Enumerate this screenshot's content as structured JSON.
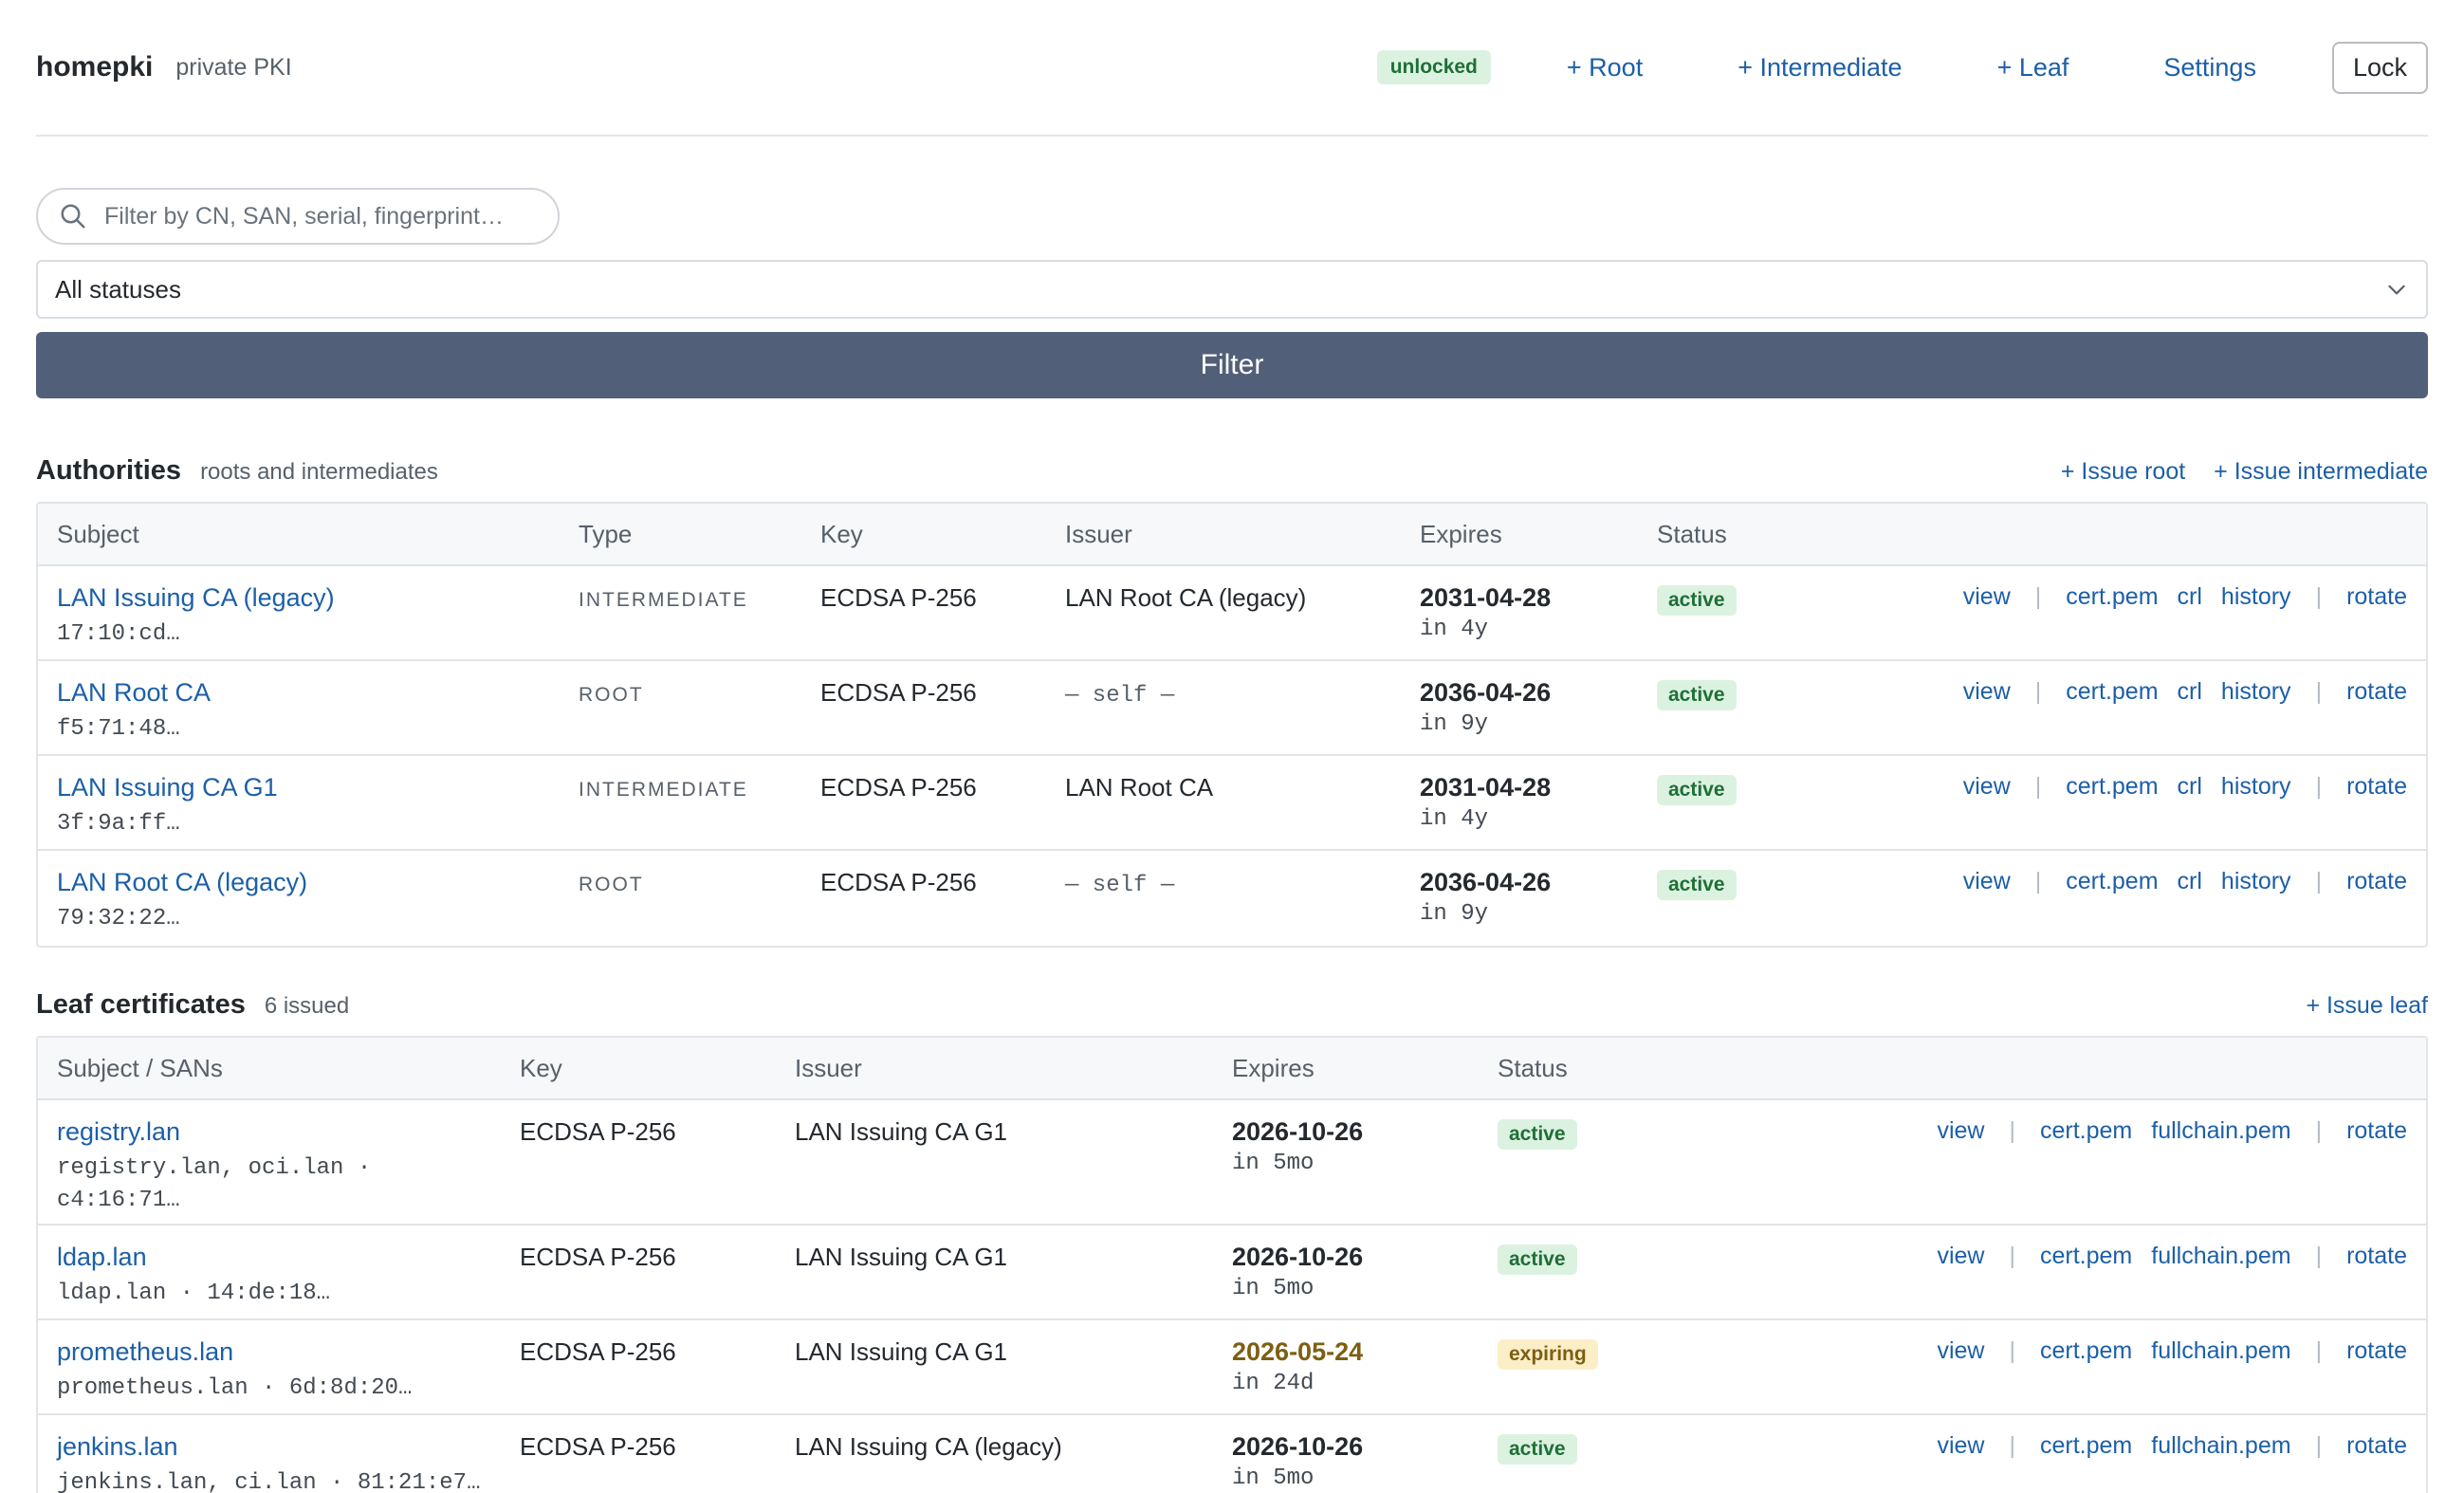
{
  "header": {
    "brand": "homepki",
    "subtitle": "private PKI",
    "status_badge": "unlocked",
    "nav": {
      "root": "+ Root",
      "intermediate": "+ Intermediate",
      "leaf": "+ Leaf",
      "settings": "Settings"
    },
    "lock_label": "Lock"
  },
  "filter": {
    "search_placeholder": "Filter by CN, SAN, serial, fingerprint…",
    "status_selected": "All statuses",
    "button_label": "Filter"
  },
  "authorities": {
    "title": "Authorities",
    "subtitle": "roots and intermediates",
    "actions": {
      "issue_root": "+ Issue root",
      "issue_intermediate": "+ Issue intermediate"
    },
    "columns": {
      "subject": "Subject",
      "type": "Type",
      "key": "Key",
      "issuer": "Issuer",
      "expires": "Expires",
      "status": "Status"
    },
    "rows": [
      {
        "name": "LAN Issuing CA (legacy)",
        "fp": "17:10:cd…",
        "type": "INTERMEDIATE",
        "key": "ECDSA P-256",
        "issuer": "LAN Root CA (legacy)",
        "expires": "2031-04-28",
        "rel": "in 4y",
        "status": "active"
      },
      {
        "name": "LAN Root CA",
        "fp": "f5:71:48…",
        "type": "ROOT",
        "key": "ECDSA P-256",
        "issuer": "— self —",
        "expires": "2036-04-26",
        "rel": "in 9y",
        "status": "active"
      },
      {
        "name": "LAN Issuing CA G1",
        "fp": "3f:9a:ff…",
        "type": "INTERMEDIATE",
        "key": "ECDSA P-256",
        "issuer": "LAN Root CA",
        "expires": "2031-04-28",
        "rel": "in 4y",
        "status": "active"
      },
      {
        "name": "LAN Root CA (legacy)",
        "fp": "79:32:22…",
        "type": "ROOT",
        "key": "ECDSA P-256",
        "issuer": "— self —",
        "expires": "2036-04-26",
        "rel": "in 9y",
        "status": "active"
      }
    ],
    "row_actions": {
      "view": "view",
      "cert": "cert.pem",
      "crl": "crl",
      "history": "history",
      "rotate": "rotate",
      "sep": "|"
    }
  },
  "leaves": {
    "title": "Leaf certificates",
    "subtitle": "6 issued",
    "actions": {
      "issue_leaf": "+ Issue leaf"
    },
    "columns": {
      "subject": "Subject / SANs",
      "key": "Key",
      "issuer": "Issuer",
      "expires": "Expires",
      "status": "Status"
    },
    "rows": [
      {
        "name": "registry.lan",
        "sans1": "registry.lan, oci.lan ·",
        "sans2": "c4:16:71…",
        "key": "ECDSA P-256",
        "issuer": "LAN Issuing CA G1",
        "expires": "2026-10-26",
        "rel": "in 5mo",
        "status": "active"
      },
      {
        "name": "ldap.lan",
        "sans1": "ldap.lan · 14:de:18…",
        "sans2": "",
        "key": "ECDSA P-256",
        "issuer": "LAN Issuing CA G1",
        "expires": "2026-10-26",
        "rel": "in 5mo",
        "status": "active"
      },
      {
        "name": "prometheus.lan",
        "sans1": "prometheus.lan · 6d:8d:20…",
        "sans2": "",
        "key": "ECDSA P-256",
        "issuer": "LAN Issuing CA G1",
        "expires": "2026-05-24",
        "rel": "in 24d",
        "status": "expiring"
      },
      {
        "name": "jenkins.lan",
        "sans1": "jenkins.lan, ci.lan · 81:21:e7…",
        "sans2": "",
        "key": "ECDSA P-256",
        "issuer": "LAN Issuing CA (legacy)",
        "expires": "2026-10-26",
        "rel": "in 5mo",
        "status": "active"
      }
    ],
    "row_actions": {
      "view": "view",
      "cert": "cert.pem",
      "fullchain": "fullchain.pem",
      "rotate": "rotate",
      "sep": "|"
    }
  },
  "colors": {
    "link": "#1c5fa8",
    "active_bg": "#dcf2e1",
    "expiring_bg": "#fcefc7",
    "filter_button": "#525f78"
  },
  "icons": {
    "search": "search-icon",
    "select": "chevron-down-icon"
  }
}
